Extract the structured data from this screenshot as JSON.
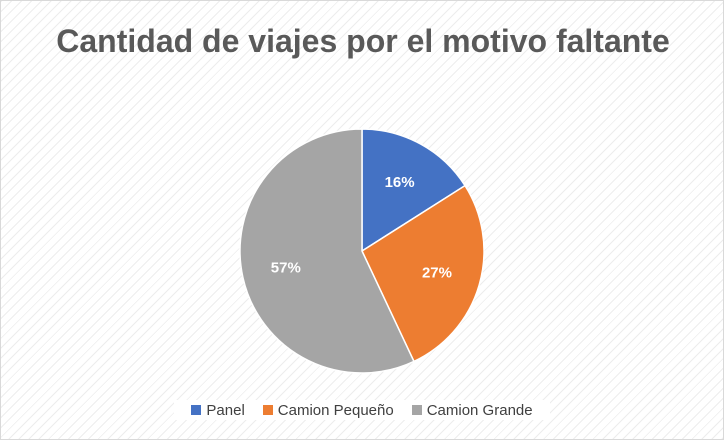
{
  "chart_data": {
    "type": "pie",
    "title": "Cantidad de viajes por el motivo faltante",
    "categories": [
      "Panel",
      "Camion Pequeño",
      "Camion Grande"
    ],
    "values": [
      16,
      27,
      57
    ],
    "labels": [
      "16%",
      "27%",
      "57%"
    ],
    "colors": [
      "#4472C4",
      "#ED7D31",
      "#A5A5A5"
    ],
    "start_angle_deg": 0,
    "direction": "clockwise",
    "legend_position": "bottom",
    "grid": false
  }
}
